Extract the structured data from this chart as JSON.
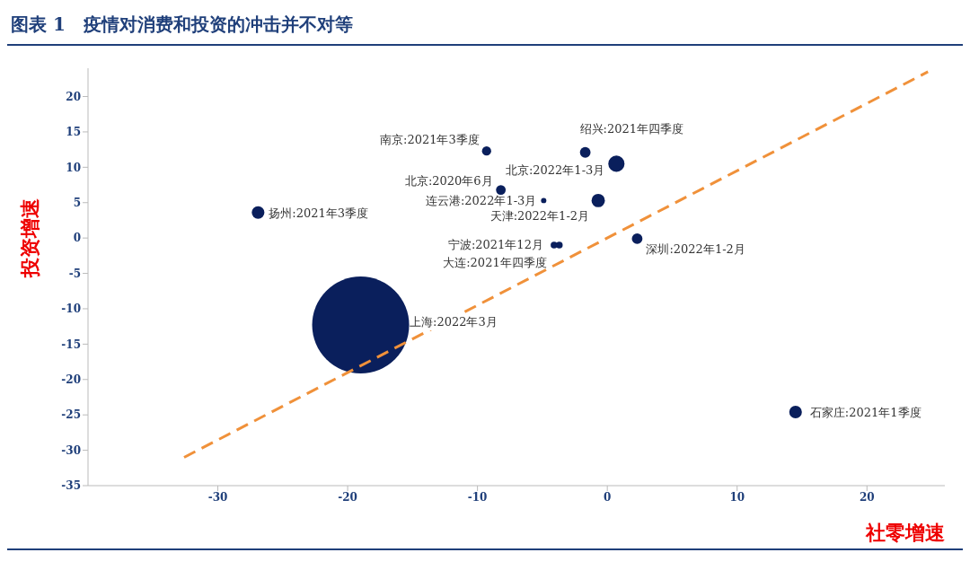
{
  "chart_data": {
    "type": "bubble",
    "title": "图表 1　疫情对消费和投资的冲击并不对等",
    "xlabel": "社零增速",
    "ylabel": "投资增速",
    "xlim": [
      -40,
      26
    ],
    "xticks": [
      -30,
      -20,
      -10,
      0,
      10,
      20
    ],
    "ylim": [
      -35,
      24
    ],
    "yticks": [
      -35,
      -30,
      -25,
      -20,
      -15,
      -10,
      -5,
      0,
      5,
      10,
      15,
      20
    ],
    "grid": false,
    "legend": false,
    "series": [
      {
        "color": "#0a1f5c",
        "x": [
          -26.9,
          -9.3,
          -8.2,
          -4.9,
          -1.7,
          0.7,
          -0.7,
          2.3,
          -4.1,
          -3.7,
          -19,
          14.5
        ],
        "values": [
          3.6,
          12.3,
          6.8,
          5.3,
          12.1,
          10.5,
          5.3,
          -0.1,
          -1.0,
          -1.0,
          -12.3,
          -24.6
        ],
        "sizes": [
          0.017,
          0.009,
          0.01,
          0.003,
          0.012,
          0.028,
          0.019,
          0.012,
          0.005,
          0.005,
          1,
          0.017
        ]
      },
      {
        "type": "line",
        "color": "#f0913a",
        "line_style": "dashed",
        "marker": "none",
        "x": [
          -32.6,
          24.7
        ],
        "values": [
          -31,
          23.5
        ]
      }
    ],
    "annotations": [
      {
        "text": "扬州:2021年3季度",
        "x": -26.9,
        "y": 3.6
      },
      {
        "text": "南京:2021年3季度",
        "x": -9.3,
        "y": 12.3
      },
      {
        "text": "北京:2020年6月",
        "x": -8.2,
        "y": 6.8
      },
      {
        "text": "连云港:2022年1-3月",
        "x": -4.9,
        "y": 5.3
      },
      {
        "text": "绍兴:2021年四季度",
        "x": -1.7,
        "y": 12.1
      },
      {
        "text": "北京:2022年1-3月",
        "x": 0.7,
        "y": 10.5
      },
      {
        "text": "天津:2022年1-2月",
        "x": -0.7,
        "y": 5.3
      },
      {
        "text": "深圳:2022年1-2月",
        "x": 2.3,
        "y": -0.1
      },
      {
        "text": "宁波:2021年12月",
        "x": -4.1,
        "y": -1.0
      },
      {
        "text": "大连:2021年四季度",
        "x": -3.7,
        "y": -1.0
      },
      "上海:2022年3月",
      {
        "text": "石家庄:2021年1季度",
        "x": 14.5,
        "y": -24.6
      }
    ]
  }
}
